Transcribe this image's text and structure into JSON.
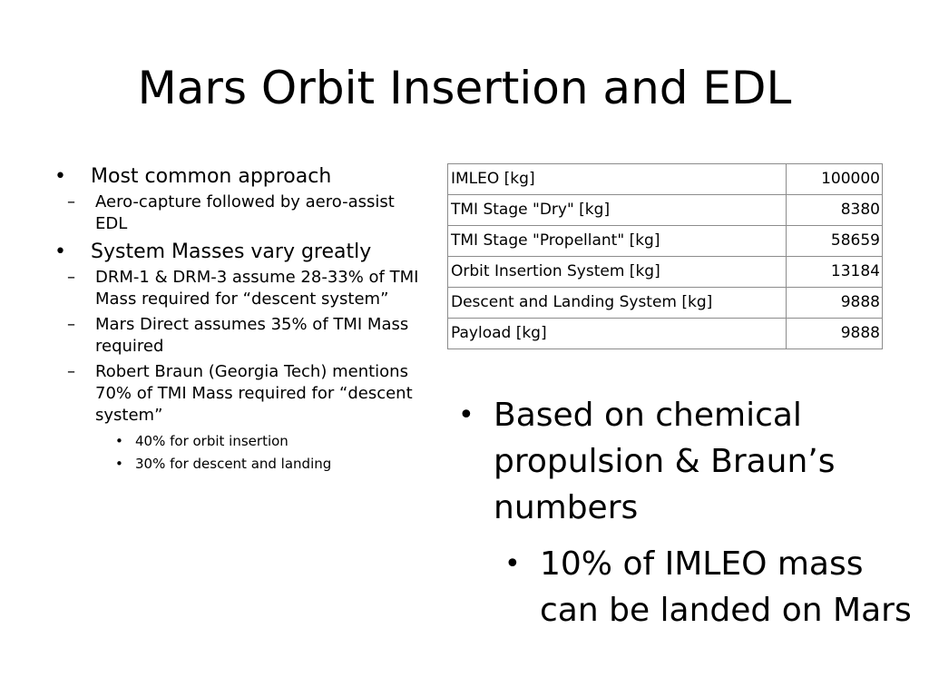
{
  "slide": {
    "title": "Mars Orbit Insertion and EDL"
  },
  "left_bullets": {
    "b1": "Most common approach",
    "b1_sub1": "Aero-capture followed by aero-assist EDL",
    "b2": "System Masses vary greatly",
    "b2_sub1": "DRM-1 & DRM-3 assume 28-33% of TMI Mass required for “descent system”",
    "b2_sub2": "Mars Direct assumes 35% of TMI Mass required",
    "b2_sub3": "Robert Braun (Georgia Tech) mentions 70% of TMI Mass required for “descent system”",
    "b2_sub3_sub1": "40% for orbit insertion",
    "b2_sub3_sub2": "30% for descent and landing"
  },
  "mass_table": {
    "rows": [
      {
        "label": "IMLEO [kg]",
        "value": "100000"
      },
      {
        "label": "TMI Stage \"Dry\" [kg]",
        "value": "8380"
      },
      {
        "label": "TMI Stage \"Propellant\" [kg]",
        "value": "58659"
      },
      {
        "label": "Orbit Insertion System [kg]",
        "value": "13184"
      },
      {
        "label": "Descent and Landing System [kg]",
        "value": "9888"
      },
      {
        "label": "Payload [kg]",
        "value": "9888"
      }
    ]
  },
  "right_bullets": {
    "b1": "Based on chemical propulsion & Braun’s numbers",
    "b1_sub1": "10% of IMLEO mass can be landed on Mars"
  },
  "bullet_glyphs": {
    "level1": "•",
    "level2": "–",
    "level3": "•"
  }
}
